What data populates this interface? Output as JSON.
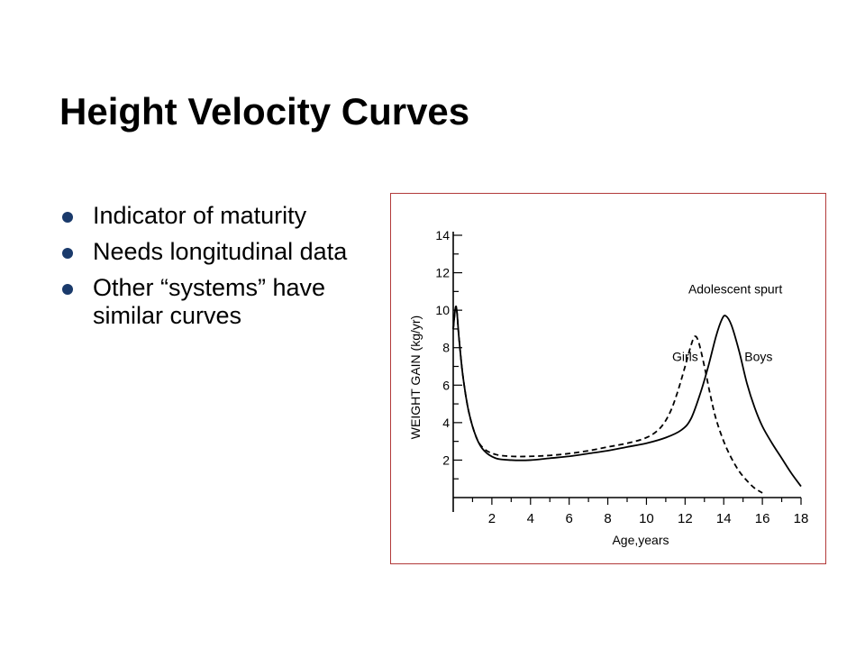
{
  "slide": {
    "title": "Height Velocity Curves",
    "bullets": [
      "Indicator of maturity",
      "Needs longitudinal data",
      "Other “systems” have similar curves"
    ],
    "bullet_color": "#1a3a6b",
    "frame_color": "#b23a3a"
  },
  "chart_data": {
    "type": "line",
    "title": "",
    "xlabel": "Age,years",
    "ylabel": "WEIGHT GAIN (kg/yr)",
    "xlim": [
      0,
      18
    ],
    "ylim": [
      0,
      14
    ],
    "x_ticks": [
      2,
      4,
      6,
      8,
      10,
      12,
      14,
      16,
      18
    ],
    "y_ticks": [
      2,
      4,
      6,
      8,
      10,
      12,
      14
    ],
    "grid": false,
    "legend": "none",
    "annotations": [
      {
        "text": "Adolescent spurt",
        "x": 14.6,
        "y": 10.9
      },
      {
        "text": "Girls",
        "x": 12.0,
        "y": 7.3
      },
      {
        "text": "Boys",
        "x": 15.8,
        "y": 7.3
      }
    ],
    "series": [
      {
        "name": "Boys",
        "style": "solid",
        "x": [
          0,
          0.15,
          0.3,
          0.5,
          0.8,
          1.2,
          1.6,
          2.2,
          3,
          4,
          5,
          6,
          7,
          8,
          9,
          10,
          11,
          11.8,
          12.3,
          12.8,
          13.2,
          13.6,
          13.9,
          14.1,
          14.4,
          14.8,
          15.2,
          15.6,
          16,
          16.5,
          17,
          17.5,
          18
        ],
        "y": [
          9.0,
          10.2,
          8.5,
          6.5,
          4.6,
          3.2,
          2.5,
          2.1,
          2.0,
          2.0,
          2.1,
          2.2,
          2.35,
          2.5,
          2.7,
          2.9,
          3.2,
          3.6,
          4.2,
          5.6,
          7.0,
          8.6,
          9.5,
          9.7,
          9.2,
          7.8,
          6.1,
          4.8,
          3.8,
          2.9,
          2.1,
          1.3,
          0.6
        ]
      },
      {
        "name": "Girls",
        "style": "dashed",
        "x": [
          0,
          0.15,
          0.3,
          0.5,
          0.8,
          1.2,
          1.6,
          2.2,
          3,
          4,
          5,
          6,
          7,
          8,
          9,
          10,
          10.7,
          11.2,
          11.6,
          12.0,
          12.3,
          12.5,
          12.7,
          13.0,
          13.3,
          13.6,
          14,
          14.4,
          14.8,
          15.2,
          15.6,
          16
        ],
        "y": [
          9.0,
          10.2,
          8.5,
          6.5,
          4.6,
          3.2,
          2.6,
          2.3,
          2.2,
          2.2,
          2.25,
          2.35,
          2.5,
          2.7,
          2.9,
          3.2,
          3.7,
          4.5,
          5.6,
          7.0,
          8.1,
          8.6,
          8.3,
          7.0,
          5.5,
          4.2,
          3.0,
          2.1,
          1.4,
          0.9,
          0.5,
          0.25
        ]
      }
    ]
  }
}
